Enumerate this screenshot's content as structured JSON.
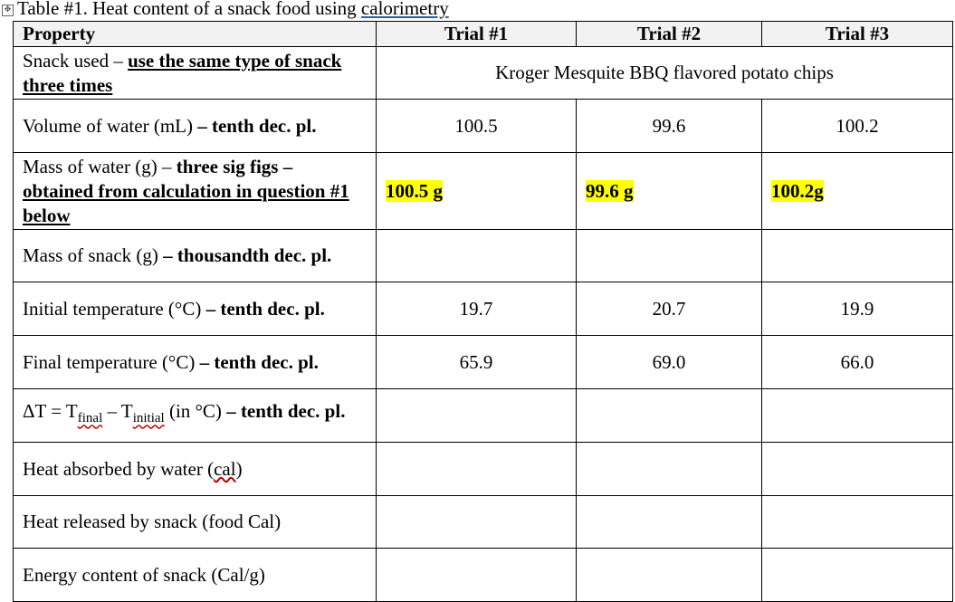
{
  "caption": {
    "prefix": "Table #1. Heat content of a snack food using ",
    "linked_word": "calorimetry"
  },
  "table": {
    "headers": [
      "Property",
      "Trial #1",
      "Trial #2",
      "Trial #3"
    ],
    "snack_row": {
      "label_plain": "Snack used – ",
      "label_bold": "use the same type of snack three times",
      "value": "Kroger Mesquite BBQ flavored potato chips"
    },
    "volume_row": {
      "label_plain": "Volume of water (mL) ",
      "label_bold": "– tenth dec. pl.",
      "values": [
        "100.5",
        "99.6",
        "100.2"
      ]
    },
    "mass_water_row": {
      "label_plain": "Mass of water (g) – ",
      "label_bold": "three sig figs –",
      "label_bold_underline": "obtained from calculation in question #1 below",
      "values": [
        "100.5 g",
        "99.6 g",
        "100.2g"
      ]
    },
    "mass_snack_row": {
      "label_plain": "Mass of snack (g) ",
      "label_bold": "– thousandth dec. pl.",
      "values": [
        "",
        "",
        ""
      ]
    },
    "initial_temp_row": {
      "label_plain": "Initial temperature (°C) ",
      "label_bold": "– tenth dec. pl.",
      "values": [
        "19.7",
        "20.7",
        "19.9"
      ]
    },
    "final_temp_row": {
      "label_plain": "Final temperature (°C) ",
      "label_bold": "– tenth dec. pl.",
      "values": [
        "65.9",
        "69.0",
        "66.0"
      ]
    },
    "delta_row": {
      "label_a": "ΔT = T",
      "sub_final": "final",
      "label_b": " – T",
      "sub_initial": "initial",
      "label_c": " (in °C) ",
      "label_bold": "– tenth dec. pl.",
      "values": [
        "",
        "",
        ""
      ]
    },
    "heat_absorbed_row": {
      "label_plain": "Heat absorbed by water (",
      "label_squig": "cal",
      "label_end": ")",
      "values": [
        "",
        "",
        ""
      ]
    },
    "heat_released_row": {
      "label": "Heat released by snack (food Cal)",
      "values": [
        "",
        "",
        ""
      ]
    },
    "energy_row": {
      "label": "Energy content of snack (Cal/g)",
      "values": [
        "",
        "",
        ""
      ]
    }
  },
  "colors": {
    "highlight": "#ffff00",
    "squiggle": "#c00000",
    "link_underline": "#2b5fb3"
  }
}
